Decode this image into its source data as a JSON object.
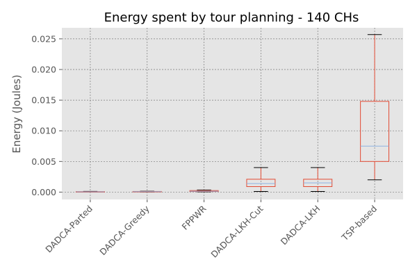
{
  "chart_data": {
    "type": "box",
    "title": "Energy spent by tour planning - 140 CHs",
    "xlabel": "",
    "ylabel": "Energy (Joules)",
    "ylim": [
      -0.0012,
      0.0268
    ],
    "yticks": [
      "0.000",
      "0.005",
      "0.010",
      "0.015",
      "0.020",
      "0.025"
    ],
    "ytick_values": [
      0.0,
      0.005,
      0.01,
      0.015,
      0.02,
      0.025
    ],
    "grid": true,
    "categories": [
      "DADCA-Parted",
      "DADCA-Greedy",
      "FPPWR",
      "DADCA-LKH-Cut",
      "DADCA-LKH",
      "TSP-based"
    ],
    "boxes": [
      {
        "whislo": 0.0,
        "q1": 1e-05,
        "med": 4e-05,
        "q3": 8e-05,
        "whishi": 0.00012
      },
      {
        "whislo": 2e-05,
        "q1": 5e-05,
        "med": 8e-05,
        "q3": 0.00011,
        "whishi": 0.00015
      },
      {
        "whislo": 5e-05,
        "q1": 0.0001,
        "med": 0.00015,
        "q3": 0.00025,
        "whishi": 0.00035
      },
      {
        "whislo": 0.0001,
        "q1": 0.0009,
        "med": 0.0014,
        "q3": 0.0021,
        "whishi": 0.004
      },
      {
        "whislo": 0.0001,
        "q1": 0.0009,
        "med": 0.0015,
        "q3": 0.0021,
        "whishi": 0.004
      },
      {
        "whislo": 0.002,
        "q1": 0.005,
        "med": 0.0075,
        "q3": 0.0148,
        "whishi": 0.0257
      }
    ],
    "colors": {
      "background": "#e5e5e5",
      "grid": "#7a7a7a",
      "box": "#e24a33",
      "median": "#8eb1e0",
      "whisker": "#e24a33",
      "cap": "#000000",
      "text": "#555555",
      "title": "#000000"
    }
  }
}
